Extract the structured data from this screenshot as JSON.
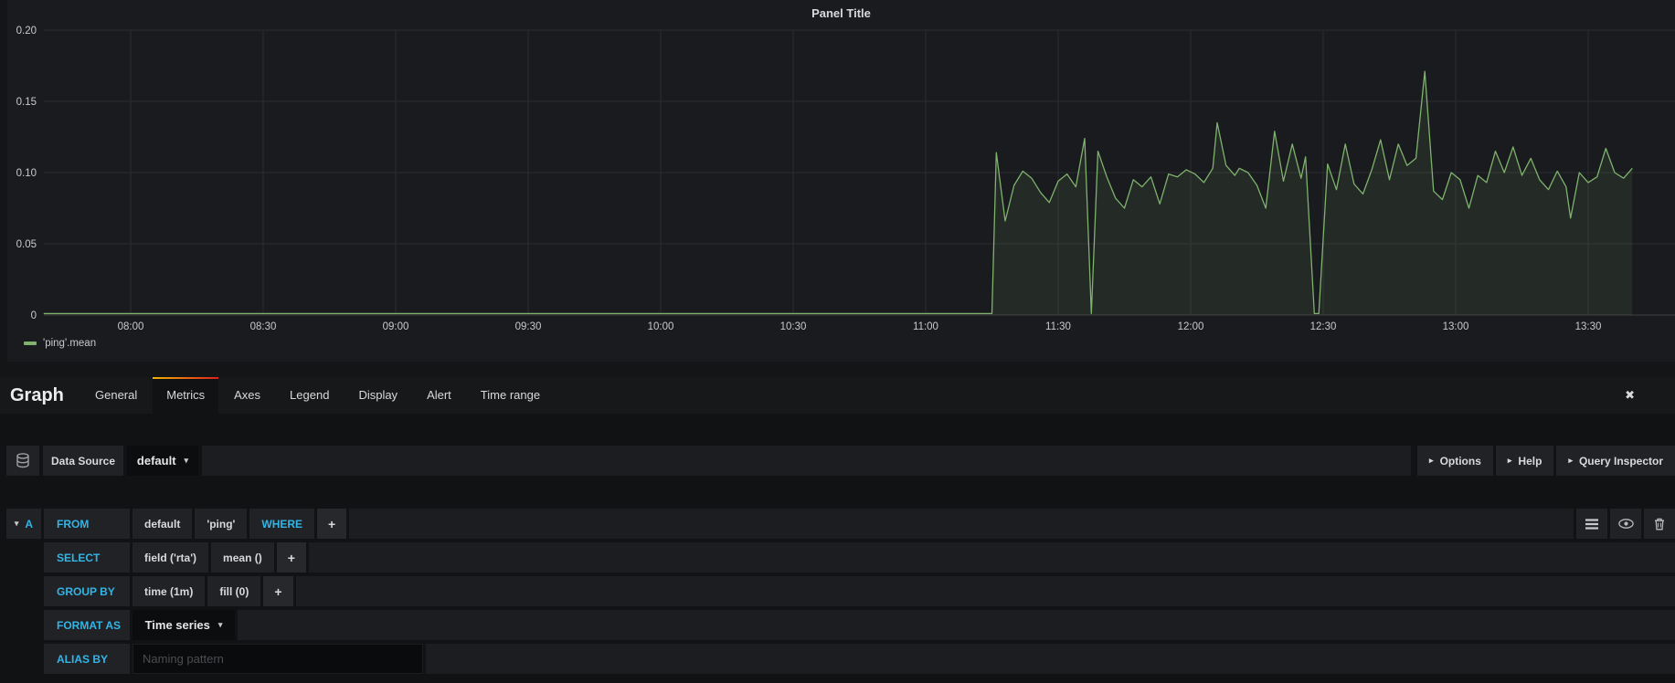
{
  "icons": {
    "close": "✖",
    "caret_down": "▾",
    "disclosure": "▸"
  },
  "colors": {
    "accent_blue": "#33b5e5",
    "series_green": "#7eb26d",
    "tab_gradient": [
      "#f0b400",
      "#e02020"
    ],
    "panel_bg": "#1a1b1e",
    "part_bg": "#202226"
  },
  "chart_data": {
    "type": "line",
    "title": "Panel Title",
    "xlabel": "",
    "ylabel": "",
    "x_tick_labels": [
      "08:00",
      "08:30",
      "09:00",
      "09:30",
      "10:00",
      "10:30",
      "11:00",
      "11:30",
      "12:00",
      "12:30",
      "13:00",
      "13:30"
    ],
    "x_tick_step_minutes": 30,
    "ylim": [
      0,
      0.2
    ],
    "y_ticks": [
      {
        "value": 0,
        "label": "0"
      },
      {
        "value": 0.05,
        "label": "0.05"
      },
      {
        "value": 0.1,
        "label": "0.10"
      },
      {
        "value": 0.15,
        "label": "0.15"
      },
      {
        "value": 0.2,
        "label": "0.20"
      }
    ],
    "grid": true,
    "legend_position": "bottom-left",
    "series": [
      {
        "name": "'ping'.mean",
        "color": "#7eb26d",
        "fill_opacity": 0.1,
        "x_unit": "minutes_after_08:00",
        "points": [
          [
            -19.7,
            0.001
          ],
          [
            195,
            0.001
          ],
          [
            196,
            0.114
          ],
          [
            198,
            0.066
          ],
          [
            200,
            0.091
          ],
          [
            202,
            0.101
          ],
          [
            204,
            0.096
          ],
          [
            206,
            0.086
          ],
          [
            208,
            0.079
          ],
          [
            210,
            0.094
          ],
          [
            212,
            0.099
          ],
          [
            214,
            0.09
          ],
          [
            216,
            0.124
          ],
          [
            217.5,
            0.001
          ],
          [
            219,
            0.115
          ],
          [
            221,
            0.097
          ],
          [
            223,
            0.082
          ],
          [
            225,
            0.075
          ],
          [
            227,
            0.095
          ],
          [
            229,
            0.09
          ],
          [
            231,
            0.097
          ],
          [
            233,
            0.078
          ],
          [
            235,
            0.099
          ],
          [
            237,
            0.097
          ],
          [
            239,
            0.102
          ],
          [
            241,
            0.099
          ],
          [
            243,
            0.093
          ],
          [
            245,
            0.103
          ],
          [
            246,
            0.135
          ],
          [
            248,
            0.105
          ],
          [
            250,
            0.098
          ],
          [
            251,
            0.103
          ],
          [
            253,
            0.1
          ],
          [
            255,
            0.091
          ],
          [
            257,
            0.075
          ],
          [
            259,
            0.129
          ],
          [
            261,
            0.094
          ],
          [
            263,
            0.12
          ],
          [
            265,
            0.096
          ],
          [
            266,
            0.111
          ],
          [
            268,
            0.001
          ],
          [
            269,
            0.001
          ],
          [
            271,
            0.106
          ],
          [
            273,
            0.088
          ],
          [
            275,
            0.12
          ],
          [
            277,
            0.092
          ],
          [
            279,
            0.085
          ],
          [
            281,
            0.102
          ],
          [
            283,
            0.123
          ],
          [
            285,
            0.095
          ],
          [
            287,
            0.12
          ],
          [
            289,
            0.105
          ],
          [
            291,
            0.11
          ],
          [
            293,
            0.171
          ],
          [
            295,
            0.087
          ],
          [
            297,
            0.081
          ],
          [
            299,
            0.1
          ],
          [
            301,
            0.095
          ],
          [
            303,
            0.075
          ],
          [
            305,
            0.098
          ],
          [
            307,
            0.093
          ],
          [
            309,
            0.115
          ],
          [
            311,
            0.1
          ],
          [
            313,
            0.118
          ],
          [
            315,
            0.098
          ],
          [
            317,
            0.11
          ],
          [
            319,
            0.095
          ],
          [
            321,
            0.088
          ],
          [
            323,
            0.101
          ],
          [
            325,
            0.09
          ],
          [
            326,
            0.068
          ],
          [
            328,
            0.1
          ],
          [
            330,
            0.093
          ],
          [
            332,
            0.097
          ],
          [
            334,
            0.117
          ],
          [
            336,
            0.1
          ],
          [
            338,
            0.096
          ],
          [
            340,
            0.103
          ]
        ]
      }
    ]
  },
  "editor": {
    "heading": "Graph",
    "tabs": [
      {
        "label": "General",
        "active": false
      },
      {
        "label": "Metrics",
        "active": true
      },
      {
        "label": "Axes",
        "active": false
      },
      {
        "label": "Legend",
        "active": false
      },
      {
        "label": "Display",
        "active": false
      },
      {
        "label": "Alert",
        "active": false
      },
      {
        "label": "Time range",
        "active": false
      }
    ],
    "datasource": {
      "label": "Data Source",
      "value": "default",
      "buttons": [
        "Options",
        "Help",
        "Query Inspector"
      ]
    },
    "query": {
      "ref_id": "A",
      "row_icons": [
        "menu-icon",
        "eye-icon",
        "trash-icon"
      ],
      "rows": [
        {
          "label": "FROM",
          "parts": [
            {
              "text": "default",
              "kind": "value"
            },
            {
              "text": "'ping'",
              "kind": "value"
            },
            {
              "text": "WHERE",
              "kind": "keyword"
            },
            {
              "text": "+",
              "kind": "plus"
            }
          ]
        },
        {
          "label": "SELECT",
          "parts": [
            {
              "text": "field ('rta')",
              "kind": "value"
            },
            {
              "text": "mean ()",
              "kind": "value"
            },
            {
              "text": "+",
              "kind": "plus"
            }
          ]
        },
        {
          "label": "GROUP BY",
          "parts": [
            {
              "text": "time (1m)",
              "kind": "value"
            },
            {
              "text": "fill (0)",
              "kind": "value"
            },
            {
              "text": "+",
              "kind": "plus"
            }
          ]
        },
        {
          "label": "FORMAT AS",
          "parts": [
            {
              "text": "Time series",
              "kind": "dropdown"
            }
          ]
        },
        {
          "label": "ALIAS BY",
          "parts": [
            {
              "text": "",
              "kind": "input",
              "placeholder": "Naming pattern"
            }
          ]
        }
      ]
    }
  }
}
